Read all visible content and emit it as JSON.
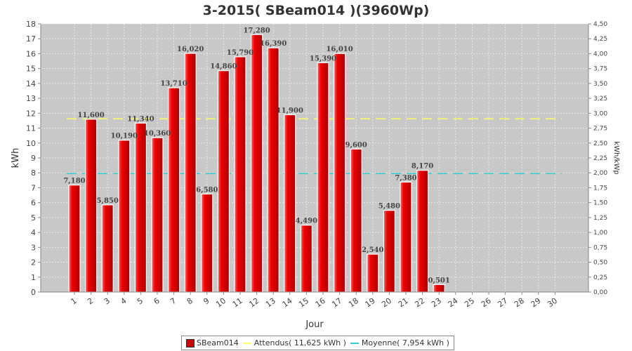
{
  "chart_data": {
    "type": "bar",
    "title": "3-2015( SBeam014 )(3960Wp)",
    "xlabel": "Jour",
    "ylabel": "kWh",
    "y2label": "kWh/kWp",
    "ylim": [
      0,
      18
    ],
    "y2lim": [
      0,
      4.5
    ],
    "grid": true,
    "legend_position": "bottom",
    "categories": [
      "1",
      "2",
      "3",
      "4",
      "5",
      "6",
      "7",
      "8",
      "9",
      "10",
      "11",
      "12",
      "13",
      "14",
      "15",
      "16",
      "17",
      "18",
      "19",
      "20",
      "21",
      "22",
      "23",
      "24",
      "25",
      "26",
      "27",
      "28",
      "29",
      "30"
    ],
    "series": [
      {
        "name": "SBeam014",
        "color": "#cc0000",
        "values": [
          7.18,
          11.6,
          5.85,
          10.19,
          11.34,
          10.36,
          13.71,
          16.02,
          6.58,
          14.86,
          15.79,
          17.28,
          16.39,
          11.9,
          4.49,
          15.39,
          16.01,
          9.6,
          2.54,
          5.48,
          7.38,
          8.17,
          0.501,
          null,
          null,
          null,
          null,
          null,
          null,
          null
        ],
        "labels": [
          "7,180",
          "11,600",
          "5,850",
          "10,190",
          "11,340",
          "10,360",
          "13,710",
          "16,020",
          "6,580",
          "14,860",
          "15,790",
          "17,280",
          "16,390",
          "11,900",
          "4,490",
          "15,390",
          "16,010",
          "9,600",
          "2,540",
          "5,480",
          "7,380",
          "8,170",
          "0,501",
          "",
          "",
          "",
          "",
          "",
          "",
          ""
        ]
      }
    ],
    "reference_lines": [
      {
        "name": "Attendus( 11,625 kWh )",
        "value": 11.625,
        "color": "#ffff66"
      },
      {
        "name": "Moyenne( 7,954 kWh )",
        "value": 7.954,
        "color": "#33cccc"
      }
    ],
    "yticks": [
      "0",
      "1",
      "2",
      "3",
      "4",
      "5",
      "6",
      "7",
      "8",
      "9",
      "10",
      "11",
      "12",
      "13",
      "14",
      "15",
      "16",
      "17",
      "18"
    ],
    "y2ticks": [
      "0,00",
      "0,25",
      "0,50",
      "0,75",
      "1,00",
      "1,25",
      "1,50",
      "1,75",
      "2,00",
      "2,25",
      "2,50",
      "2,75",
      "3,00",
      "3,25",
      "3,50",
      "3,75",
      "4,00",
      "4,25",
      "4,50"
    ]
  },
  "legend": {
    "series_label": "SBeam014",
    "expected_label": "Attendus( 11,625 kWh )",
    "average_label": "Moyenne( 7,954 kWh )"
  }
}
